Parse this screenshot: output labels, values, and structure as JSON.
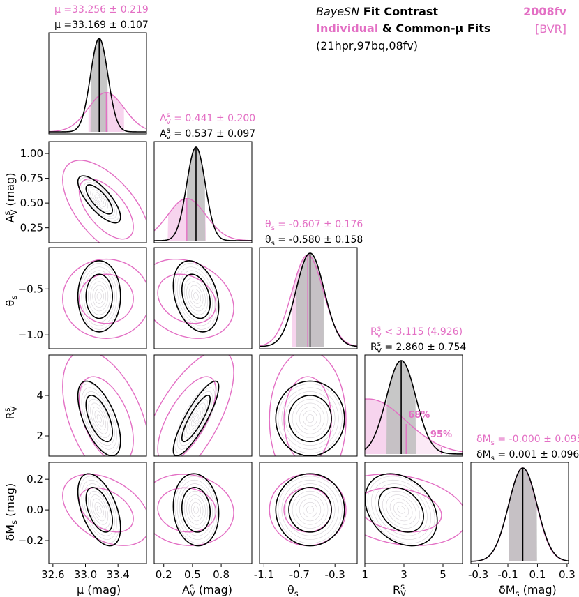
{
  "header": {
    "title_italic": "BayeSN",
    "title_rest": " Fit Contrast",
    "subtitle_pink": "Individual",
    "subtitle_rest": " & Common-μ Fits",
    "siblings": "(21hpr,97bq,08fv)",
    "sn_name": "2008fv",
    "bands": "[BVR]"
  },
  "colors": {
    "individual": "#e36fc4",
    "common": "#000000",
    "density": "#b9b3bd",
    "shade_common": "#bdbdbd",
    "shade_individual": "#f7d4ee"
  },
  "chart_data": {
    "type": "corner",
    "title": "BayeSN Fit Contrast — Individual & Common-μ Fits",
    "series": [
      {
        "name": "Individual",
        "color": "#e36fc4"
      },
      {
        "name": "Common-μ",
        "color": "#000000"
      }
    ],
    "parameters": [
      {
        "key": "mu",
        "label": "μ (mag)",
        "ylabel": "",
        "range": [
          32.55,
          33.75
        ],
        "ticks": [
          32.6,
          33.0,
          33.4
        ],
        "tick_labels": [
          "32.6",
          "33.0",
          "33.4"
        ],
        "individual": {
          "summary": "μ =33.256 ± 0.219",
          "center": 33.256,
          "sigma": 0.219
        },
        "common": {
          "summary": "μ =33.169 ± 0.107",
          "center": 33.169,
          "sigma": 0.107
        }
      },
      {
        "key": "AV",
        "label": "A_V^s (mag)",
        "ylabel": "A_V^s (mag)",
        "range": [
          0.1,
          1.12
        ],
        "ticks": [
          0.2,
          0.5,
          0.8
        ],
        "tick_labels": [
          "0.2",
          "0.5",
          "0.8"
        ],
        "yticks": [
          0.25,
          0.5,
          0.75,
          1.0
        ],
        "ytick_labels": [
          "0.25",
          "0.50",
          "0.75",
          "1.00"
        ],
        "individual": {
          "summary": "A_V^s =  0.441 ± 0.200",
          "center": 0.441,
          "sigma": 0.2
        },
        "common": {
          "summary": "A_V^s =  0.537 ± 0.097",
          "center": 0.537,
          "sigma": 0.097
        }
      },
      {
        "key": "theta",
        "label": "θ_s",
        "ylabel": "θ_s",
        "range": [
          -1.15,
          -0.05
        ],
        "ticks": [
          -1.1,
          -0.7,
          -0.3
        ],
        "tick_labels": [
          "-1.1",
          "-0.7",
          "-0.3"
        ],
        "yticks": [
          -1.0,
          -0.5
        ],
        "ytick_labels": [
          "−1.0",
          "−0.5"
        ],
        "individual": {
          "summary": "θ_s = -0.607 ± 0.176",
          "center": -0.607,
          "sigma": 0.176
        },
        "common": {
          "summary": "θ_s = -0.580 ± 0.158",
          "center": -0.58,
          "sigma": 0.158
        }
      },
      {
        "key": "RV",
        "label": "R_V^s",
        "ylabel": "R_V^s",
        "range": [
          1.0,
          6.0
        ],
        "ticks": [
          1,
          3,
          5
        ],
        "tick_labels": [
          "1",
          "3",
          "5"
        ],
        "yticks": [
          2,
          4
        ],
        "ytick_labels": [
          "2",
          "4"
        ],
        "individual": {
          "summary": "R_V^s <  3.115   (4.926)",
          "center": 2.2,
          "sigma": 1.5,
          "limit68": 3.115,
          "limit95": 4.926
        },
        "common": {
          "summary": "R_V^s =  2.860 ± 0.754",
          "center": 2.86,
          "sigma": 0.754
        },
        "annotations": [
          "68%",
          "95%"
        ]
      },
      {
        "key": "dMs",
        "label": "δM_s (mag)",
        "ylabel": "δM_s (mag)",
        "range": [
          -0.35,
          0.31
        ],
        "ticks": [
          -0.3,
          -0.1,
          0.1,
          0.3
        ],
        "tick_labels": [
          "-0.3",
          "-0.1",
          "0.1",
          "0.3"
        ],
        "yticks": [
          -0.2,
          0.0,
          0.2
        ],
        "ytick_labels": [
          "−0.2",
          "0.0",
          "0.2"
        ],
        "individual": {
          "summary": "δM_s = -0.000 ± 0.095",
          "center": 0.0,
          "sigma": 0.095
        },
        "common": {
          "summary": "δM_s =  0.001 ± 0.096",
          "center": 0.001,
          "sigma": 0.096
        }
      }
    ],
    "correlations": {
      "mu|AV": -0.75,
      "mu|theta": 0.0,
      "mu|RV": -0.6,
      "mu|dMs": -0.5,
      "AV|theta": -0.3,
      "AV|RV": 0.85,
      "AV|dMs": -0.1,
      "theta|RV": 0.0,
      "theta|dMs": 0.0,
      "RV|dMs": -0.3
    }
  }
}
